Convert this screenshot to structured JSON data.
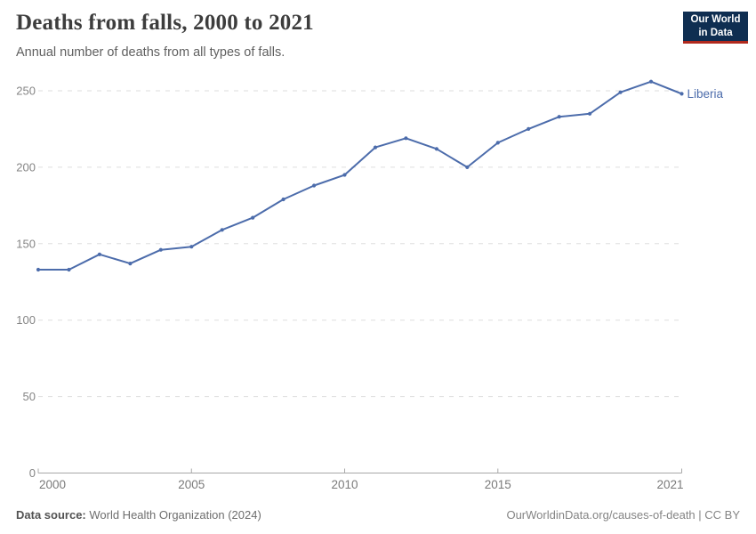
{
  "header": {
    "title": "Deaths from falls, 2000 to 2021",
    "subtitle": "Annual number of deaths from all types of falls.",
    "logo": {
      "line1": "Our World",
      "line2": "in Data",
      "bg_color": "#0f2e51",
      "accent_color": "#b1291d"
    }
  },
  "chart_data": {
    "type": "line",
    "title": "Deaths from falls, 2000 to 2021",
    "subtitle": "Annual number of deaths from all types of falls.",
    "x": [
      2000,
      2001,
      2002,
      2003,
      2004,
      2005,
      2006,
      2007,
      2008,
      2009,
      2010,
      2011,
      2012,
      2013,
      2014,
      2015,
      2016,
      2017,
      2018,
      2019,
      2020,
      2021
    ],
    "series": [
      {
        "name": "Liberia",
        "color": "#4c6cab",
        "values": [
          133,
          133,
          143,
          137,
          146,
          148,
          159,
          167,
          179,
          188,
          195,
          213,
          219,
          212,
          200,
          216,
          225,
          233,
          235,
          249,
          256,
          248
        ]
      }
    ],
    "xlim": [
      2000,
      2021
    ],
    "ylim": [
      0,
      250
    ],
    "x_ticks": [
      2000,
      2005,
      2010,
      2015,
      2021
    ],
    "y_ticks": [
      0,
      50,
      100,
      150,
      200,
      250
    ],
    "grid": "horizontal-dashed",
    "legend_position": "line-end-label",
    "colors": {
      "line": "#4c6cab",
      "gridline": "#dedede",
      "axis": "#a8a8a8",
      "tick_label": "#858585"
    }
  },
  "footer": {
    "source_label": "Data source:",
    "source_text": " World Health Organization (2024)",
    "link_text": "OurWorldinData.org/causes-of-death | CC BY"
  }
}
